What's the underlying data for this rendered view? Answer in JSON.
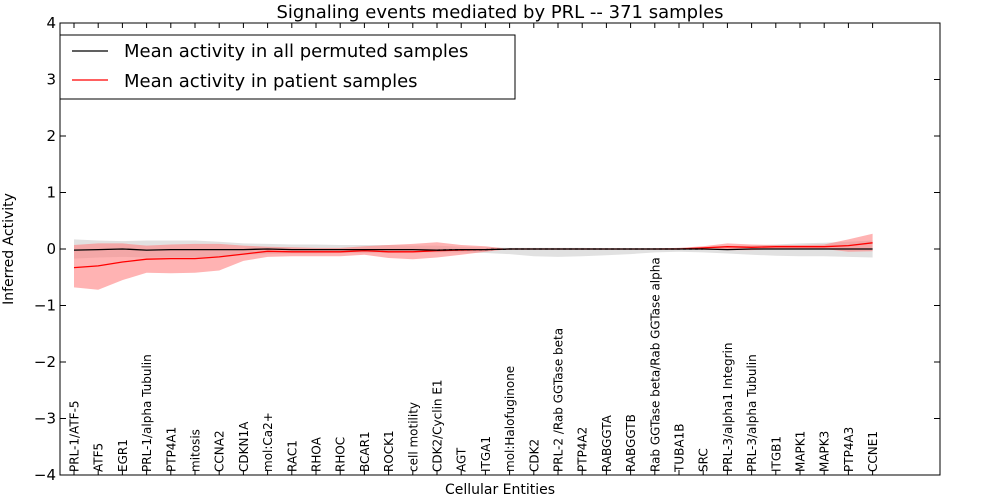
{
  "chart_data": {
    "type": "line",
    "title": "Signaling events mediated by PRL -- 371 samples",
    "xlabel": "Cellular Entities",
    "ylabel": "Inferred Activity",
    "ylim": [
      -4,
      4
    ],
    "yticks": [
      -4,
      -3,
      -2,
      -1,
      0,
      1,
      2,
      3,
      4
    ],
    "yticklabels": [
      "−4",
      "−3",
      "−2",
      "−1",
      "0",
      "1",
      "2",
      "3",
      "4"
    ],
    "grid": false,
    "legend_position": "top-left",
    "categories": [
      "PRL-1/ATF-5",
      "ATF5",
      "EGR1",
      "PRL-1/alpha Tubulin",
      "PTP4A1",
      "mitosis",
      "CCNA2",
      "CDKN1A",
      "mol:Ca2+",
      "RAC1",
      "RHOA",
      "RHOC",
      "BCAR1",
      "ROCK1",
      "cell motility",
      "CDK2/Cyclin E1",
      "AGT",
      "ITGA1",
      "mol:Halofuginone",
      "CDK2",
      "PRL-2 /Rab GGTase beta",
      "PTP4A2",
      "RABGGTA",
      "RABGGTB",
      "Rab GGTase beta/Rab GGTase alpha",
      "TUBA1B",
      "SRC",
      "PRL-3/alpha1 Integrin",
      "PRL-3/alpha Tubulin",
      "ITGB1",
      "MAPK1",
      "MAPK3",
      "PTP4A3",
      "CCNE1"
    ],
    "series": [
      {
        "name": "Mean activity in all permuted samples",
        "color": "#000000",
        "values": [
          -0.02,
          -0.01,
          0.0,
          -0.02,
          -0.01,
          -0.01,
          -0.01,
          -0.01,
          0.0,
          -0.01,
          -0.01,
          -0.01,
          -0.01,
          -0.01,
          -0.01,
          -0.02,
          -0.01,
          -0.01,
          0.0,
          0.0,
          0.0,
          0.0,
          0.0,
          0.0,
          0.0,
          0.0,
          0.0,
          -0.01,
          0.0,
          0.0,
          0.0,
          0.0,
          0.0,
          0.0
        ],
        "band_upper": [
          0.17,
          0.15,
          0.14,
          0.15,
          0.15,
          0.15,
          0.13,
          0.1,
          0.09,
          0.08,
          0.08,
          0.07,
          0.07,
          0.07,
          0.06,
          0.06,
          0.04,
          0.03,
          0.02,
          0.02,
          0.02,
          0.02,
          0.01,
          0.01,
          0.01,
          0.02,
          0.03,
          0.05,
          0.06,
          0.08,
          0.1,
          0.11,
          0.13,
          0.15
        ],
        "band_lower": [
          -0.17,
          -0.15,
          -0.14,
          -0.15,
          -0.15,
          -0.15,
          -0.13,
          -0.1,
          -0.09,
          -0.08,
          -0.08,
          -0.07,
          -0.07,
          -0.07,
          -0.06,
          -0.06,
          -0.06,
          -0.07,
          -0.09,
          -0.13,
          -0.14,
          -0.13,
          -0.11,
          -0.09,
          -0.06,
          -0.05,
          -0.06,
          -0.08,
          -0.1,
          -0.12,
          -0.13,
          -0.13,
          -0.14,
          -0.15
        ]
      },
      {
        "name": "Mean activity in patient samples",
        "color": "#ff0000",
        "band_color": "#ff8080",
        "values": [
          -0.33,
          -0.3,
          -0.23,
          -0.18,
          -0.17,
          -0.17,
          -0.14,
          -0.09,
          -0.04,
          -0.05,
          -0.05,
          -0.05,
          -0.03,
          -0.05,
          -0.05,
          -0.03,
          -0.02,
          -0.01,
          0.0,
          0.0,
          0.0,
          0.0,
          0.0,
          0.0,
          0.0,
          0.0,
          0.02,
          0.04,
          0.03,
          0.04,
          0.04,
          0.04,
          0.06,
          0.11
        ],
        "band_upper": [
          0.07,
          0.1,
          0.1,
          0.06,
          0.08,
          0.09,
          0.09,
          0.06,
          0.04,
          0.03,
          0.02,
          0.02,
          0.05,
          0.07,
          0.09,
          0.12,
          0.07,
          0.05,
          0.0,
          0.0,
          0.0,
          0.0,
          0.0,
          0.0,
          0.01,
          0.02,
          0.05,
          0.1,
          0.08,
          0.07,
          0.07,
          0.08,
          0.17,
          0.27
        ],
        "band_lower": [
          -0.68,
          -0.72,
          -0.55,
          -0.42,
          -0.43,
          -0.42,
          -0.38,
          -0.21,
          -0.14,
          -0.13,
          -0.13,
          -0.13,
          -0.1,
          -0.16,
          -0.18,
          -0.15,
          -0.1,
          -0.05,
          0.0,
          0.0,
          0.0,
          0.0,
          0.0,
          0.0,
          -0.01,
          -0.01,
          -0.01,
          -0.02,
          -0.02,
          0.0,
          0.0,
          0.0,
          -0.05,
          -0.04
        ]
      }
    ]
  }
}
